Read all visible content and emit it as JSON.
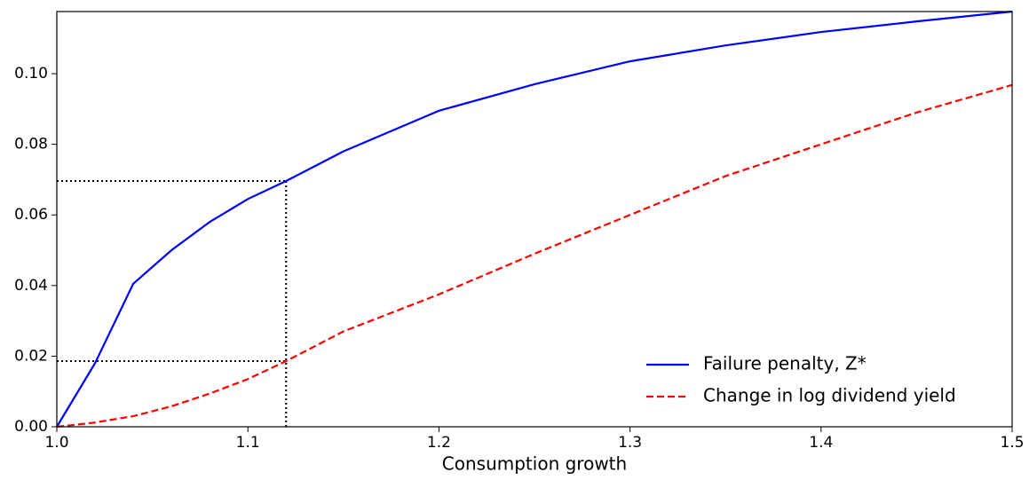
{
  "chart_data": {
    "type": "line",
    "xlabel": "Consumption growth",
    "x": [
      1.0,
      1.02,
      1.04,
      1.06,
      1.08,
      1.1,
      1.12,
      1.15,
      1.2,
      1.25,
      1.3,
      1.35,
      1.4,
      1.45,
      1.5
    ],
    "series": [
      {
        "name": "Failure penalty, Z*",
        "color": "#0000ff",
        "dash": "solid",
        "values": [
          0,
          0.018,
          0.0405,
          0.05,
          0.058,
          0.0645,
          0.0696,
          0.078,
          0.0895,
          0.097,
          0.1035,
          0.108,
          0.1118,
          0.1148,
          0.1176
        ]
      },
      {
        "name": "Change in log dividend yield",
        "color": "#ff0000",
        "dash": "dashed",
        "values": [
          0,
          0.0012,
          0.003,
          0.0058,
          0.0094,
          0.0135,
          0.0186,
          0.027,
          0.0375,
          0.049,
          0.06,
          0.071,
          0.08,
          0.089,
          0.0968
        ]
      }
    ],
    "markers": {
      "x": 1.12,
      "y": [
        0.0696,
        0.0186
      ]
    },
    "xlim": [
      1.0,
      1.5
    ],
    "ylim": [
      0,
      0.1176
    ],
    "xticks": [
      {
        "value": 1.0,
        "label": "1.0"
      },
      1.1,
      1.2,
      1.3,
      1.4,
      1.5
    ],
    "yticks": [
      {
        "value": 0,
        "label": "0.00"
      },
      {
        "value": 0.02,
        "label": "0.02"
      },
      {
        "value": 0.04,
        "label": "0.04"
      },
      {
        "value": 0.06,
        "label": "0.06"
      },
      {
        "value": 0.08,
        "label": "0.08"
      },
      {
        "value": 0.1,
        "label": "0.10"
      }
    ],
    "grid": false,
    "legend": "lower right"
  }
}
